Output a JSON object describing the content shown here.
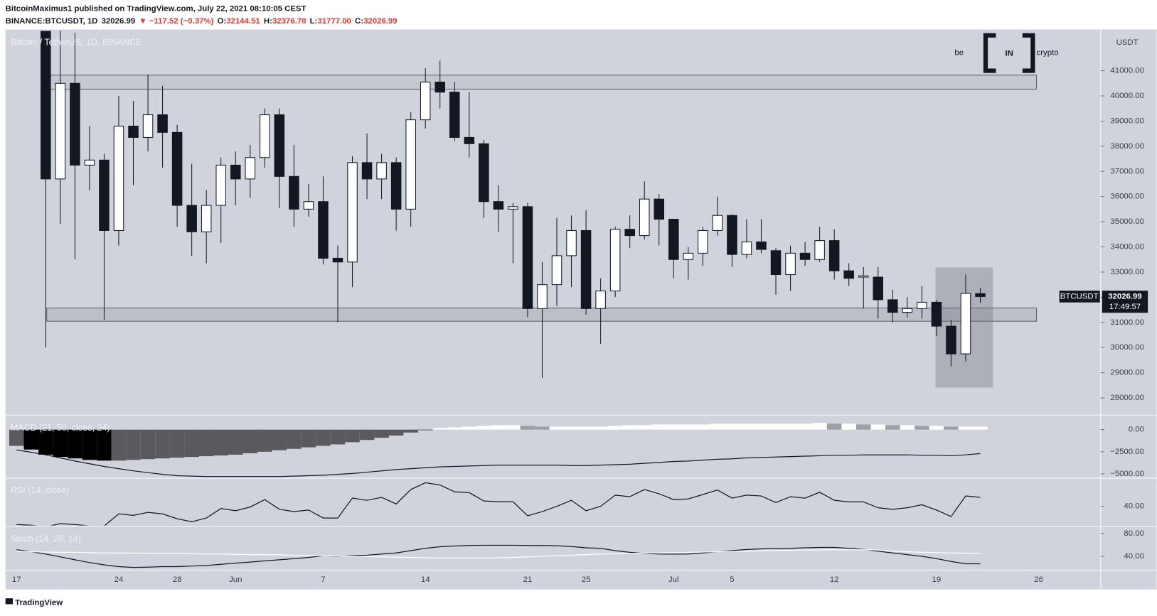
{
  "header": {
    "author_line": "BitcoinMaximus1 published on TradingView.com, July 22, 2021 08:10:05 CEST",
    "symbol_line": [
      {
        "text": "BINANCE:BTCUSDT, 1D",
        "color": "#131722"
      },
      {
        "text": "32026.99",
        "color": "#131722"
      },
      {
        "text": "▼ −117.52 (−0.37%)",
        "color": "#e53935"
      },
      {
        "text": "O:",
        "color": "#131722"
      },
      {
        "text": "32144.51",
        "color": "#e53935"
      },
      {
        "text": "H:",
        "color": "#131722"
      },
      {
        "text": "32376.78",
        "color": "#e53935"
      },
      {
        "text": "L:",
        "color": "#131722"
      },
      {
        "text": "31777.00",
        "color": "#e53935"
      },
      {
        "text": "C:",
        "color": "#131722"
      },
      {
        "text": "32026.99",
        "color": "#e53935"
      }
    ]
  },
  "logo": {
    "left": "be",
    "mark": "IN",
    "right": "crypto"
  },
  "footer": "TradingView",
  "chart_data": [
    {
      "type": "candlestick",
      "legend": "Bitcoin / TetherUS, 1D, BINANCE",
      "unit": "USDT",
      "categories": [
        "17",
        null,
        null,
        null,
        null,
        null,
        null,
        "24",
        null,
        null,
        null,
        "28",
        null,
        null,
        null,
        "Jun",
        null,
        null,
        null,
        null,
        null,
        "7",
        null,
        null,
        null,
        null,
        null,
        null,
        "14",
        null,
        null,
        null,
        null,
        null,
        null,
        "21",
        null,
        null,
        null,
        "25",
        null,
        null,
        null,
        null,
        null,
        "Jul",
        null,
        null,
        null,
        "5",
        null,
        null,
        null,
        null,
        null,
        null,
        "12",
        null,
        null,
        null,
        null,
        null,
        null,
        "19",
        null,
        null,
        null,
        null,
        null,
        null,
        "26"
      ],
      "open": [
        null,
        null,
        42900,
        36700,
        40500,
        37250,
        37450,
        34650,
        38800,
        38350,
        39250,
        38550,
        35650,
        34600,
        35650,
        37250,
        36700,
        37550,
        39250,
        36800,
        35500,
        35800,
        33550,
        33400,
        37350,
        36700,
        37350,
        35500,
        39050,
        40550,
        40150,
        38350,
        38100,
        35800,
        35500,
        35600,
        31550,
        32500,
        33650,
        34650,
        31550,
        32250,
        34700,
        34450,
        35900,
        35100,
        33500,
        33750,
        34650,
        35250,
        33700,
        34200,
        33850,
        32900,
        33750,
        33500,
        34250,
        33050,
        32800,
        32800,
        31900,
        31400,
        31550,
        31800,
        30850,
        29750,
        32144.51,
        null,
        null,
        null,
        null
      ],
      "high": [
        null,
        null,
        43600,
        42600,
        42500,
        38800,
        37700,
        40000,
        39800,
        40850,
        40400,
        38850,
        37300,
        36250,
        37550,
        37800,
        38050,
        39500,
        39500,
        38050,
        36500,
        36800,
        34050,
        37600,
        38500,
        37700,
        37550,
        39350,
        41100,
        41400,
        40550,
        40150,
        38250,
        36450,
        35750,
        35750,
        33400,
        35150,
        35250,
        35450,
        32750,
        34800,
        35250,
        36600,
        36100,
        35100,
        34000,
        34800,
        36000,
        35300,
        35100,
        35100,
        33950,
        34050,
        34200,
        34800,
        34700,
        33350,
        33200,
        33200,
        32300,
        32000,
        32450,
        31900,
        31100,
        32900,
        32376.78,
        null,
        null,
        null,
        null
      ],
      "low": [
        null,
        null,
        30000,
        34900,
        33500,
        36250,
        31100,
        34050,
        36450,
        37800,
        37150,
        34800,
        33650,
        33350,
        34150,
        35650,
        35950,
        37150,
        35550,
        34800,
        35200,
        33300,
        31000,
        32400,
        35900,
        35900,
        34650,
        34800,
        38700,
        39500,
        38200,
        37550,
        35150,
        34600,
        33350,
        31200,
        28800,
        31650,
        32400,
        31300,
        30150,
        32000,
        33950,
        34300,
        34050,
        32750,
        32700,
        33250,
        34450,
        33200,
        33550,
        33750,
        32100,
        32250,
        33250,
        33400,
        32700,
        32450,
        31550,
        31150,
        31000,
        31200,
        31150,
        30450,
        29250,
        29450,
        31777,
        null,
        null,
        null,
        null
      ],
      "close": [
        null,
        null,
        36700,
        40500,
        37250,
        37450,
        34650,
        38800,
        38350,
        39250,
        38550,
        35650,
        34600,
        35650,
        37250,
        36700,
        37550,
        39250,
        36800,
        35500,
        35800,
        33550,
        33400,
        37350,
        36700,
        37350,
        35500,
        39050,
        40550,
        40150,
        38350,
        38100,
        35800,
        35500,
        35600,
        31550,
        32500,
        33650,
        34650,
        31550,
        32250,
        34700,
        34450,
        35900,
        35100,
        33500,
        33750,
        34650,
        35250,
        33700,
        34200,
        33900,
        32900,
        33750,
        33500,
        34250,
        33050,
        32750,
        32850,
        31900,
        31400,
        31550,
        31800,
        30850,
        29750,
        32150,
        32026.99,
        null,
        null,
        null,
        null
      ],
      "up_color": "#ffffff",
      "down_color": "#131722",
      "ylim": [
        27356,
        42581
      ],
      "yticks": [
        {
          "value": 28000,
          "label": "28000.00"
        },
        {
          "value": 29000,
          "label": "29000.00"
        },
        {
          "value": 30000,
          "label": "30000.00"
        },
        {
          "value": 31000,
          "label": "31000.00"
        },
        {
          "value": 32000,
          "label": "32000.00"
        },
        {
          "value": 33000,
          "label": "33000.00"
        },
        {
          "value": 34000,
          "label": "34000.00"
        },
        {
          "value": 35000,
          "label": "35000.00"
        },
        {
          "value": 36000,
          "label": "36000.00"
        },
        {
          "value": 37000,
          "label": "37000.00"
        },
        {
          "value": 38000,
          "label": "38000.00"
        },
        {
          "value": 39000,
          "label": "39000.00"
        },
        {
          "value": 40000,
          "label": "40000.00"
        },
        {
          "value": 41000,
          "label": "41000.00"
        }
      ],
      "last_price": {
        "symbol": "BTCUSDT",
        "value": 32026.99,
        "countdown": "17:49:57"
      }
    },
    {
      "type": "macd",
      "legend": "MACD (21, 50, close, 24)",
      "histogram": [
        -1830,
        -2250,
        -2830,
        -3080,
        -3250,
        -3420,
        -3500,
        -3500,
        -3420,
        -3330,
        -3250,
        -3170,
        -3080,
        -3000,
        -2920,
        -2830,
        -2670,
        -2500,
        -2330,
        -2170,
        -2000,
        -1830,
        -1670,
        -1420,
        -1170,
        -920,
        -670,
        -330,
        -80,
        170,
        250,
        330,
        420,
        500,
        500,
        420,
        330,
        330,
        330,
        330,
        330,
        420,
        500,
        500,
        580,
        580,
        580,
        580,
        670,
        670,
        670,
        670,
        670,
        670,
        670,
        750,
        670,
        670,
        580,
        580,
        500,
        500,
        420,
        420,
        330,
        330,
        330
      ],
      "histogram_colors": {
        "falling_below_zero": "#000000",
        "rising_below_zero": "#5a5a5e",
        "rising_above_zero": "#ffffff",
        "falling_above_zero": "#9d9fa6"
      },
      "values": [
        -2300,
        -2550,
        -2850,
        -3200,
        -3550,
        -3850,
        -4150,
        -4400,
        -4650,
        -4850,
        -5050,
        -5200,
        -5250,
        -5300,
        -5300,
        -5300,
        -5300,
        -5300,
        -5300,
        -5250,
        -5200,
        -5150,
        -5050,
        -4950,
        -4800,
        -4650,
        -4500,
        -4400,
        -4300,
        -4200,
        -4150,
        -4100,
        -4050,
        -4000,
        -4000,
        -4000,
        -4000,
        -4000,
        -4050,
        -4050,
        -4000,
        -3950,
        -3900,
        -3800,
        -3700,
        -3600,
        -3550,
        -3450,
        -3350,
        -3300,
        -3200,
        -3150,
        -3100,
        -3050,
        -3000,
        -2950,
        -2900,
        -2900,
        -2850,
        -2850,
        -2850,
        -2850,
        -2900,
        -2900,
        -2950,
        -2850,
        -2700
      ],
      "color": "#131722",
      "ylim": [
        -5400,
        1500
      ],
      "yticks": [
        {
          "value": 0,
          "label": "0.00"
        },
        {
          "value": -2500,
          "label": "−2500.00"
        },
        {
          "value": -5000,
          "label": "−5000.00"
        }
      ]
    },
    {
      "type": "line",
      "legend": "RSI (14, close)",
      "series": [
        {
          "color": "#131722",
          "values": [
            16,
            15,
            13,
            17,
            16,
            14,
            14,
            30,
            28,
            32,
            30,
            23.5,
            19.6,
            24.5,
            37,
            34,
            39,
            48.7,
            36,
            33,
            35,
            24.5,
            24.5,
            50.7,
            47.8,
            51.7,
            43,
            62,
            71,
            68,
            59,
            58,
            47,
            46,
            46,
            27.4,
            33,
            40,
            47.8,
            34,
            40,
            54.6,
            52.6,
            62,
            56.5,
            48.7,
            49.7,
            55.5,
            61.4,
            50.7,
            54.6,
            53.6,
            44.9,
            52.6,
            50.7,
            58.4,
            47.8,
            45.8,
            45.8,
            38,
            36,
            38,
            42,
            35,
            26.4,
            53.6,
            51.7
          ]
        }
      ],
      "ylim": [
        14.8,
        76
      ],
      "yticks": [
        {
          "value": 40,
          "label": "40.00"
        }
      ]
    },
    {
      "type": "line",
      "legend": "Stoch (14, 28, 14)",
      "series": [
        {
          "color": "#131722",
          "values": [
            51.6,
            48,
            44,
            39,
            34,
            29,
            25,
            22,
            20.6,
            21,
            22,
            22,
            23,
            24,
            26,
            28,
            30,
            32,
            34,
            36,
            38,
            41,
            40,
            41,
            42,
            44,
            46,
            50,
            54,
            56.8,
            58,
            59,
            59.4,
            59.4,
            59.4,
            59,
            59,
            58.5,
            57,
            55,
            54,
            50,
            47,
            45,
            44,
            43.9,
            44,
            46,
            48,
            50,
            52,
            53,
            53.5,
            54,
            55,
            55.5,
            55.5,
            54,
            52,
            49,
            46,
            43,
            40,
            36,
            31,
            27,
            27
          ]
        },
        {
          "color": "#ffffff",
          "values": [
            49,
            48,
            47.5,
            47,
            47,
            46.5,
            46,
            46,
            45.5,
            45.5,
            45,
            45,
            44.5,
            44,
            44,
            43.5,
            43,
            43,
            42.5,
            42,
            41.5,
            41,
            40.5,
            40,
            39.5,
            39,
            38.5,
            38,
            37.5,
            37,
            37,
            37,
            37,
            37.5,
            38,
            39,
            40,
            41,
            42,
            43,
            44,
            44.5,
            45,
            45.5,
            46,
            46.5,
            47,
            47.5,
            48,
            48.5,
            49,
            49.5,
            50,
            50.5,
            51,
            51,
            51.5,
            51.5,
            51.5,
            51,
            49,
            48,
            47,
            46.5,
            46,
            45.5,
            45
          ]
        }
      ],
      "ylim": [
        16.8,
        90.3
      ],
      "yticks": [
        {
          "value": 80,
          "label": "80.00"
        },
        {
          "value": 40,
          "label": "40.00"
        }
      ]
    }
  ]
}
